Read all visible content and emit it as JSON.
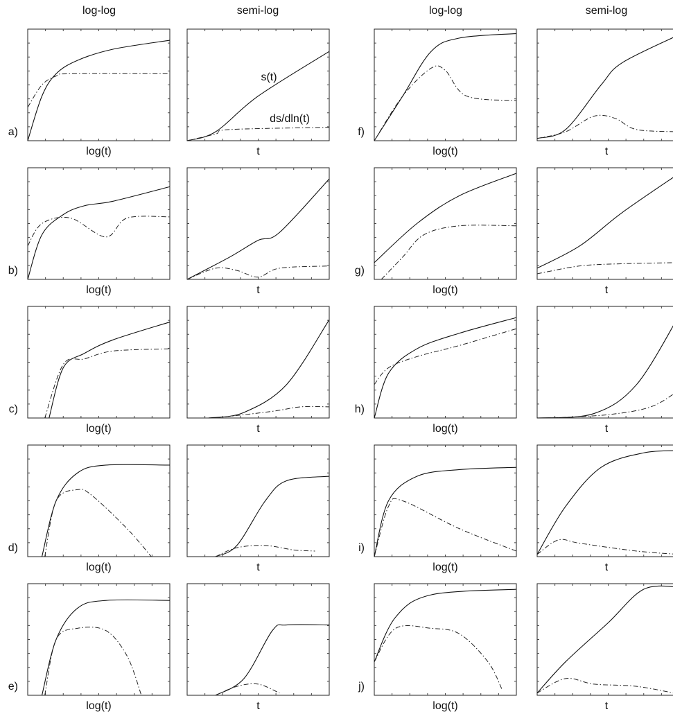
{
  "headers": [
    "log-log",
    "semi-log",
    "log-log",
    "semi-log"
  ],
  "annotations": [
    "s(t)",
    "ds/dln(t)"
  ],
  "rows": [
    {
      "left": {
        "label": "a)",
        "xlabels": [
          "log(t)",
          "t"
        ]
      },
      "right": {
        "label": "f)",
        "xlabels": [
          "log(t)",
          "t"
        ]
      }
    },
    {
      "left": {
        "label": "b)",
        "xlabels": [
          "log(t)",
          "t"
        ]
      },
      "right": {
        "label": "g)",
        "xlabels": [
          "log(t)",
          "t"
        ]
      }
    },
    {
      "left": {
        "label": "c)",
        "xlabels": [
          "log(t)",
          "t"
        ]
      },
      "right": {
        "label": "h)",
        "xlabels": [
          "log(t)",
          "t"
        ]
      }
    },
    {
      "left": {
        "label": "d)",
        "xlabels": [
          "log(t)",
          "t"
        ]
      },
      "right": {
        "label": "i)",
        "xlabels": [
          "log(t)",
          "t"
        ]
      }
    },
    {
      "left": {
        "label": "e)",
        "xlabels": [
          "log(t)",
          "t"
        ]
      },
      "right": {
        "label": "j)",
        "xlabels": [
          "log(t)",
          "t"
        ]
      }
    }
  ]
}
